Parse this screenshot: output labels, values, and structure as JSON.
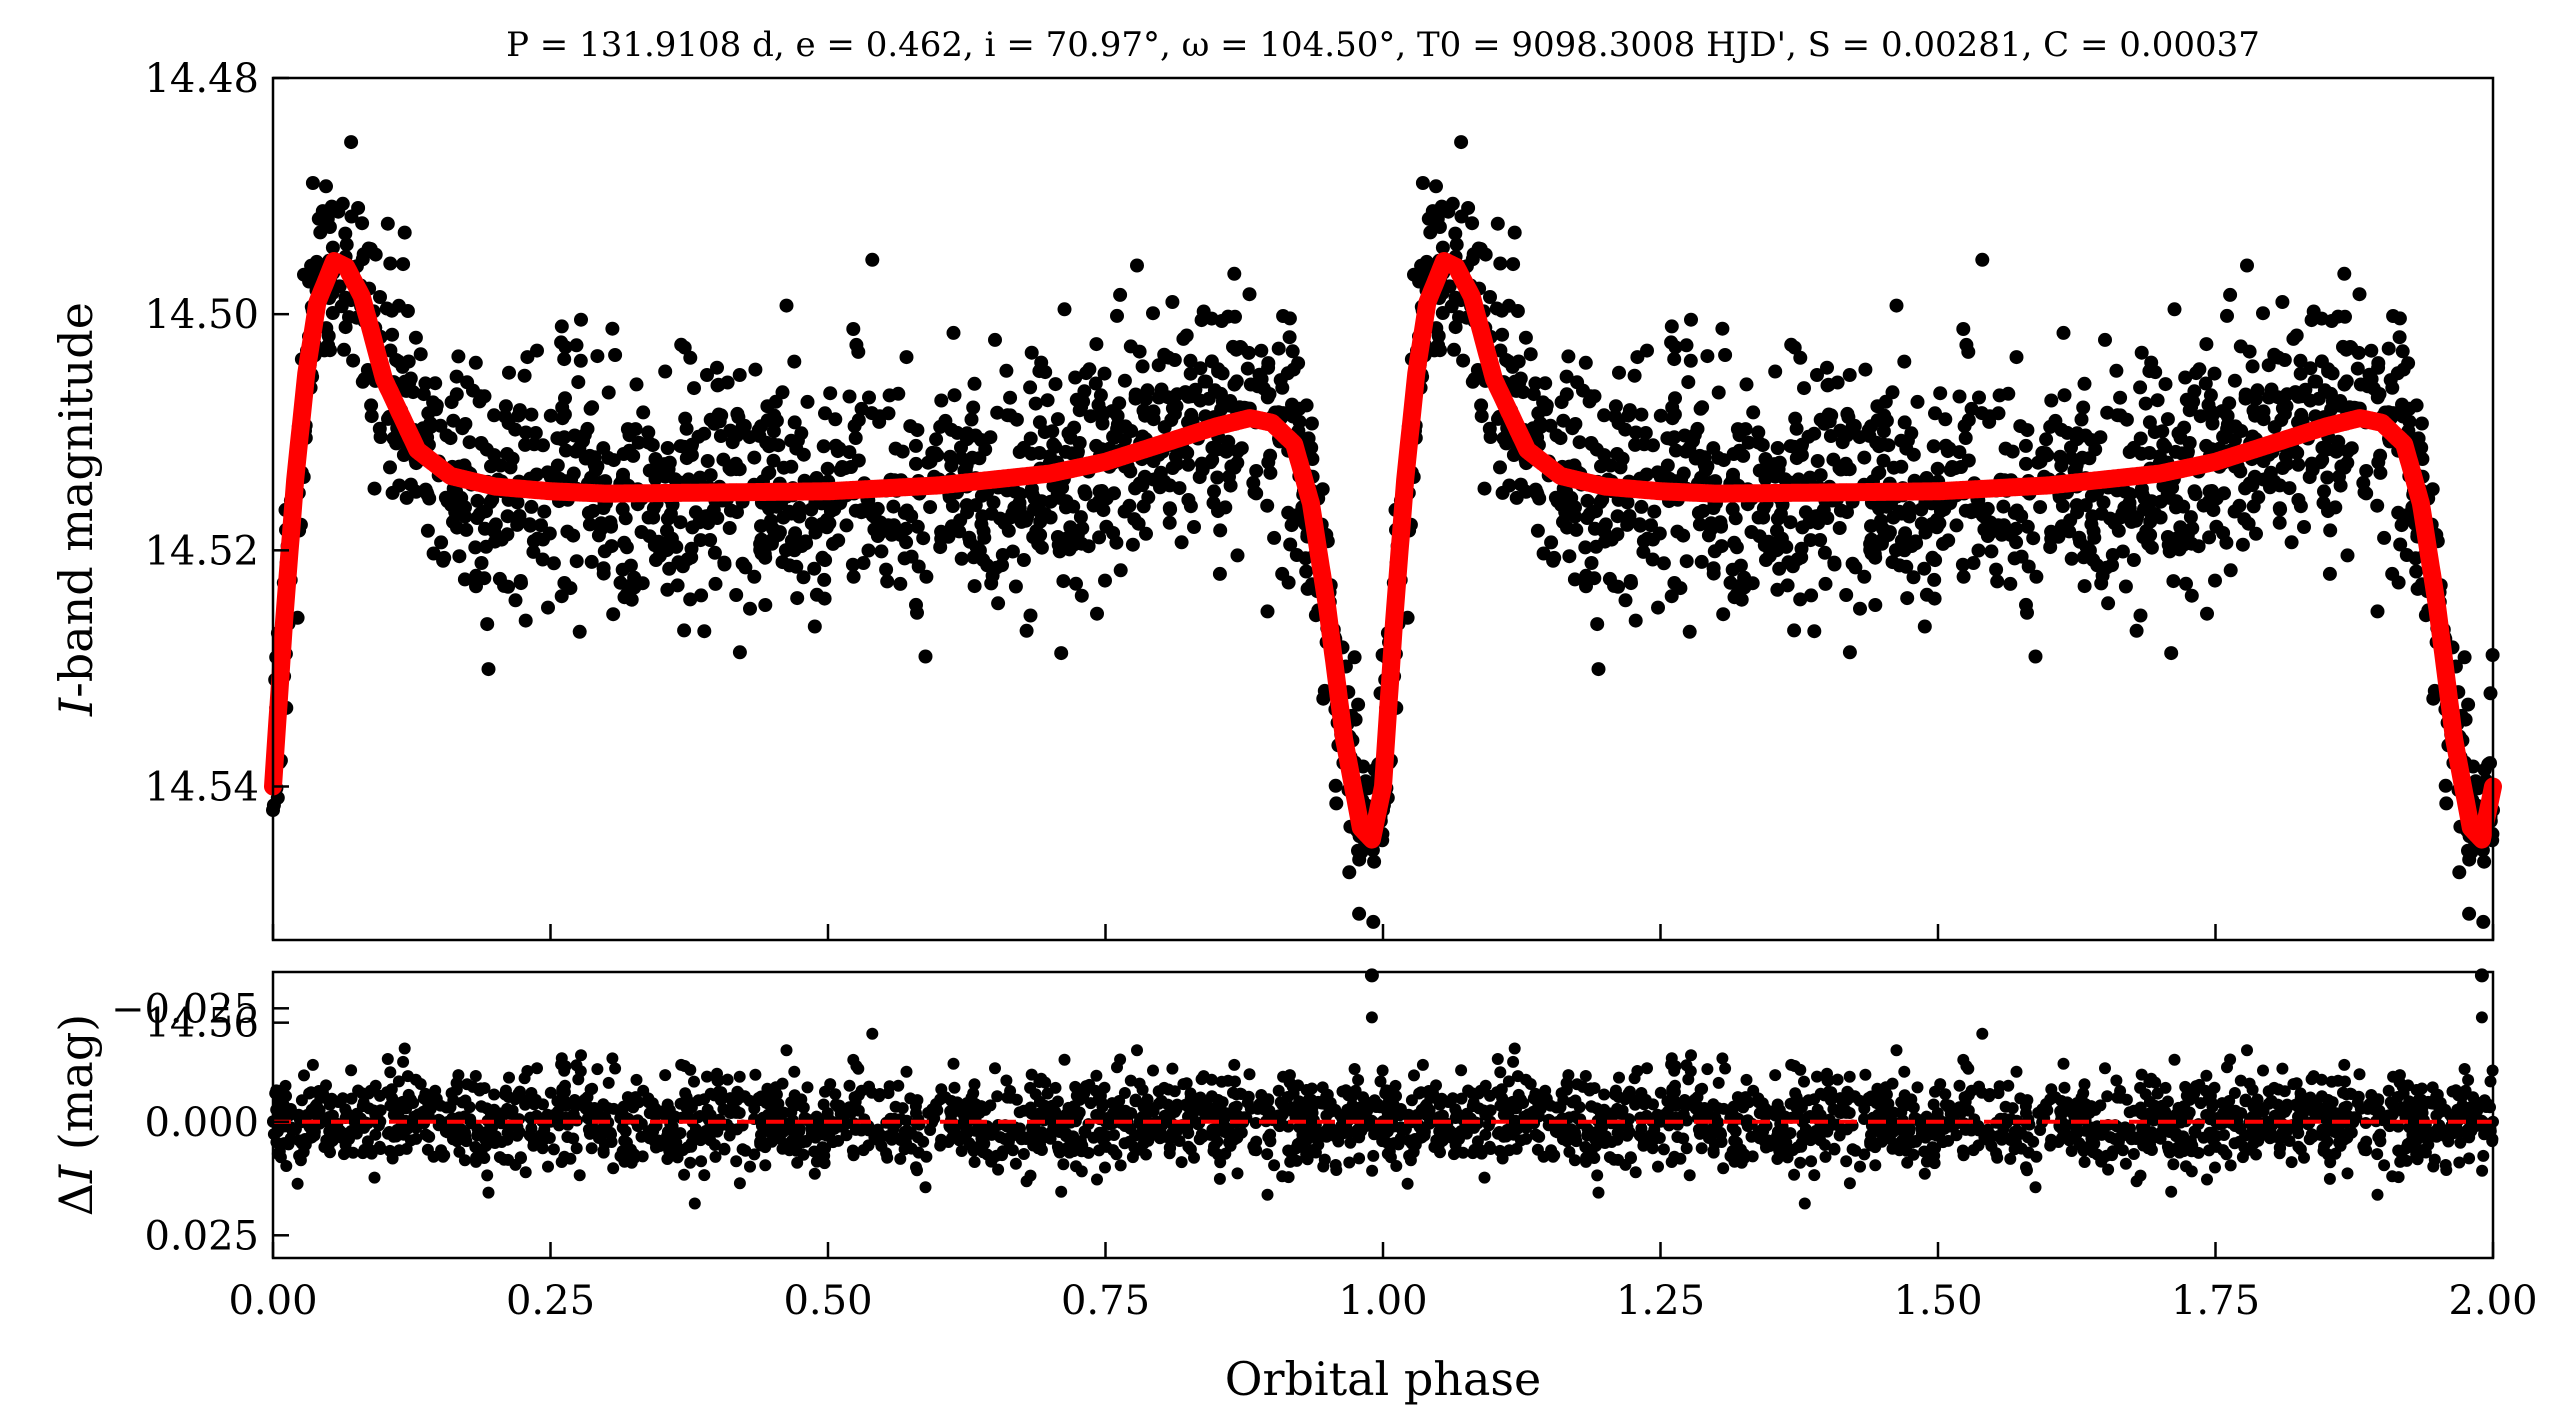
{
  "chart_data": [
    {
      "type": "scatter",
      "panel": "top",
      "title": "P = 131.9108 d, e = 0.462, i = 70.97°, ω = 104.50°, T0 = 9098.3008 HJD', S = 0.00281, C = 0.00037",
      "xlabel": "Orbital phase",
      "ylabel": "I-band magnitude",
      "xlim": [
        0.0,
        2.0
      ],
      "ylim": [
        14.553,
        14.48
      ],
      "y_inverted": true,
      "xticks": [
        "0.00",
        "0.25",
        "0.50",
        "0.75",
        "1.00",
        "1.25",
        "1.50",
        "1.75",
        "2.00"
      ],
      "yticks": [
        "14.48",
        "14.50",
        "14.52",
        "14.54",
        "14.56"
      ],
      "grid": false,
      "colors": {
        "points": "#000000",
        "model": "#ff0000"
      },
      "series": [
        {
          "type": "scatter",
          "description_points": "observed photometry (phase-folded, repeated over two cycles)",
          "x": [
            0.0,
            0.02,
            0.05,
            0.07,
            0.1,
            0.15,
            0.2,
            0.3,
            0.4,
            0.5,
            0.6,
            0.7,
            0.8,
            0.88,
            0.93,
            0.96,
            0.99,
            1.0,
            1.02,
            1.05,
            1.07,
            1.1,
            1.15,
            1.2,
            1.3,
            1.4,
            1.5,
            1.6,
            1.7,
            1.8,
            1.88,
            1.93,
            1.96,
            1.99,
            2.0
          ],
          "y": [
            14.542,
            14.515,
            14.498,
            14.496,
            14.505,
            14.513,
            14.515,
            14.516,
            14.515,
            14.515,
            14.514,
            14.513,
            14.511,
            14.508,
            14.515,
            14.532,
            14.556,
            14.542,
            14.515,
            14.498,
            14.496,
            14.505,
            14.513,
            14.515,
            14.516,
            14.515,
            14.515,
            14.514,
            14.513,
            14.511,
            14.508,
            14.515,
            14.532,
            14.556,
            14.542
          ]
        },
        {
          "type": "line",
          "description_points": "model fit",
          "x": [
            0.0,
            0.01,
            0.02,
            0.03,
            0.04,
            0.055,
            0.066,
            0.08,
            0.1,
            0.13,
            0.16,
            0.2,
            0.25,
            0.3,
            0.4,
            0.5,
            0.6,
            0.7,
            0.75,
            0.8,
            0.85,
            0.88,
            0.9,
            0.92,
            0.935,
            0.95,
            0.965,
            0.98,
            0.99,
            1.0,
            1.01,
            1.02,
            1.03,
            1.04,
            1.055,
            1.066,
            1.08,
            1.1,
            1.13,
            1.16,
            1.2,
            1.25,
            1.3,
            1.4,
            1.5,
            1.6,
            1.7,
            1.75,
            1.8,
            1.85,
            1.88,
            1.9,
            1.92,
            1.935,
            1.95,
            1.965,
            1.98,
            1.99,
            2.0
          ],
          "y": [
            14.54,
            14.526,
            14.514,
            14.505,
            14.499,
            14.4955,
            14.496,
            14.4985,
            14.5055,
            14.5115,
            14.5137,
            14.5146,
            14.515,
            14.5152,
            14.5151,
            14.515,
            14.5145,
            14.5135,
            14.5125,
            14.511,
            14.5095,
            14.5088,
            14.5092,
            14.511,
            14.516,
            14.525,
            14.536,
            14.5435,
            14.5445,
            14.54,
            14.526,
            14.514,
            14.505,
            14.499,
            14.4955,
            14.496,
            14.4985,
            14.5055,
            14.5115,
            14.5137,
            14.5146,
            14.515,
            14.5152,
            14.5151,
            14.515,
            14.5145,
            14.5135,
            14.5125,
            14.511,
            14.5095,
            14.5088,
            14.5092,
            14.511,
            14.516,
            14.525,
            14.536,
            14.5435,
            14.5445,
            14.54
          ]
        }
      ]
    },
    {
      "type": "scatter",
      "panel": "bottom",
      "xlabel": "Orbital phase",
      "ylabel": "ΔI (mag)",
      "xlim": [
        0.0,
        2.0
      ],
      "ylim": [
        0.03,
        -0.033
      ],
      "y_inverted": true,
      "xticks": [
        "0.00",
        "0.25",
        "0.50",
        "0.75",
        "1.00",
        "1.25",
        "1.50",
        "1.75",
        "2.00"
      ],
      "yticks": [
        "−0.025",
        "0.000",
        "0.025"
      ],
      "grid": false,
      "reference_line": {
        "y": 0.0,
        "style": "dashed",
        "color": "#ff0000"
      },
      "series": [
        {
          "type": "scatter",
          "description_points": "residuals scattered around zero",
          "x": [
            0.0,
            0.25,
            0.38,
            0.5,
            0.75,
            0.99,
            1.0,
            1.25,
            1.38,
            1.5,
            1.75,
            1.99,
            2.0
          ],
          "y": [
            0.0,
            0.0,
            0.018,
            0.0,
            0.0,
            -0.023,
            0.0,
            0.0,
            0.018,
            0.0,
            0.0,
            -0.023,
            0.0
          ]
        }
      ]
    }
  ]
}
